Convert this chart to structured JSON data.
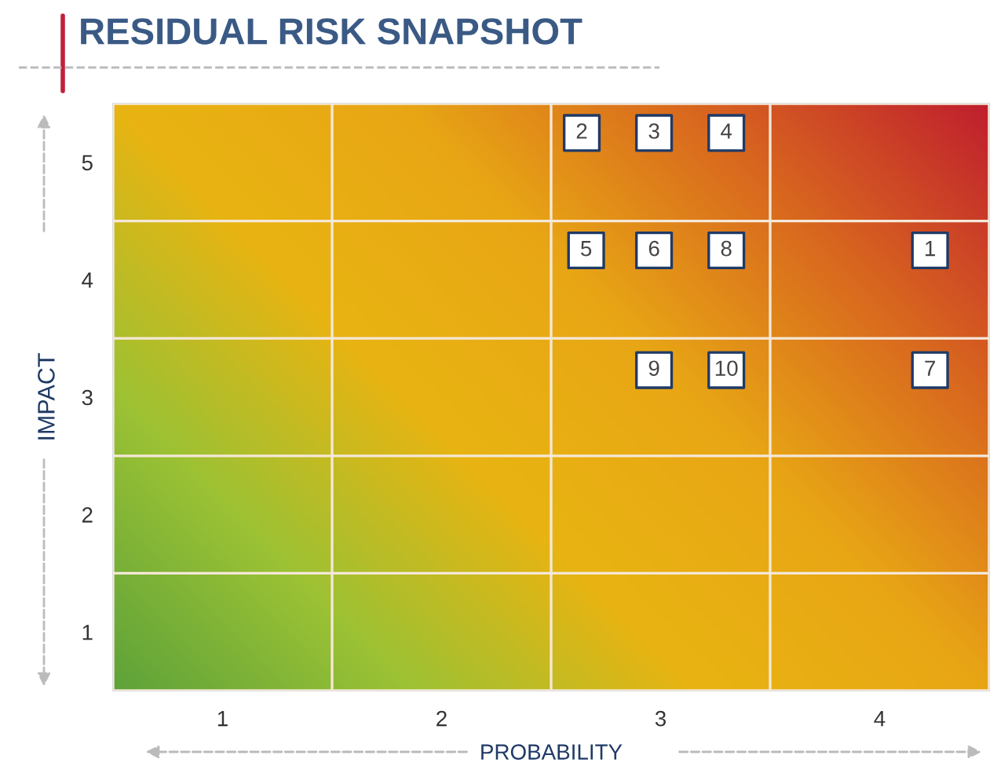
{
  "chart_data": {
    "type": "scatter",
    "title": "RESIDUAL RISK SNAPSHOT",
    "xlabel": "PROBABILITY",
    "ylabel": "IMPACT",
    "x": [
      4.23,
      2.64,
      2.97,
      3.3,
      2.66,
      2.97,
      4.23,
      3.3,
      2.97,
      3.3
    ],
    "values": [
      4.25,
      5.25,
      5.25,
      5.25,
      4.25,
      4.25,
      3.23,
      4.25,
      3.23,
      3.23
    ],
    "annotations": [
      {
        "text": "1",
        "x": 4.23,
        "y": 4.25
      },
      {
        "text": "2",
        "x": 2.64,
        "y": 5.25
      },
      {
        "text": "3",
        "x": 2.97,
        "y": 5.25
      },
      {
        "text": "4",
        "x": 3.3,
        "y": 5.25
      },
      {
        "text": "5",
        "x": 2.66,
        "y": 4.25
      },
      {
        "text": "6",
        "x": 2.97,
        "y": 4.25
      },
      {
        "text": "7",
        "x": 4.23,
        "y": 3.23
      },
      {
        "text": "8",
        "x": 3.3,
        "y": 4.25
      },
      {
        "text": "9",
        "x": 2.97,
        "y": 3.23
      },
      {
        "text": "10",
        "x": 3.3,
        "y": 3.23
      }
    ],
    "color": "#ffffff",
    "marker": "square",
    "xlim": [
      0.5,
      4.5
    ],
    "xticks": [
      1,
      2,
      3,
      4
    ],
    "ylim": [
      0.5,
      5.5
    ],
    "yticks": [
      1,
      2,
      3,
      4,
      5
    ],
    "grid": true
  }
}
